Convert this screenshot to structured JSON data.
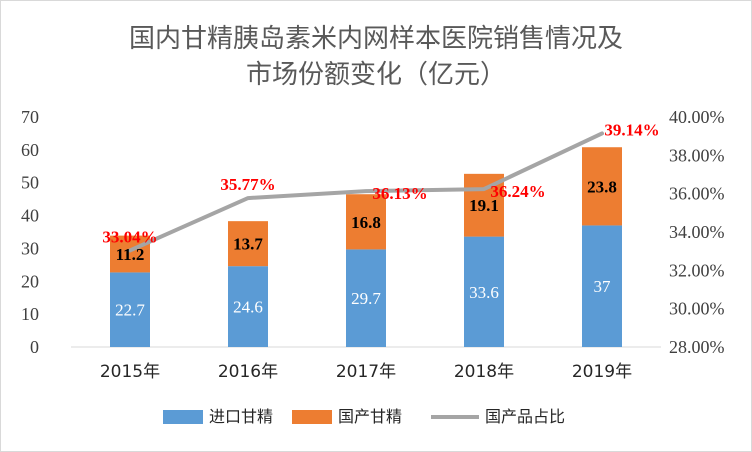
{
  "chart_data": {
    "type": "bar",
    "stacked": true,
    "title": "国内甘精胰岛素米内网样本医院销售情况及市场份额变化（亿元）",
    "title_lines": [
      "国内甘精胰岛素米内网样本医院销售情况及",
      "市场份额变化（亿元）"
    ],
    "categories": [
      "2015年",
      "2016年",
      "2017年",
      "2018年",
      "2019年"
    ],
    "series": [
      {
        "name": "进口甘精",
        "type": "bar",
        "axis": "left",
        "color": "#5b9bd5",
        "values": [
          22.7,
          24.6,
          29.7,
          33.6,
          37
        ],
        "labels": [
          "22.7",
          "24.6",
          "29.7",
          "33.6",
          "37"
        ]
      },
      {
        "name": "国产甘精",
        "type": "bar",
        "axis": "left",
        "color": "#ed7d31",
        "values": [
          11.2,
          13.7,
          16.8,
          19.1,
          23.8
        ],
        "labels": [
          "11.2",
          "13.7",
          "16.8",
          "19.1",
          "23.8"
        ]
      },
      {
        "name": "国产品占比",
        "type": "line",
        "axis": "right",
        "color": "#a5a5a5",
        "values": [
          33.04,
          35.77,
          36.13,
          36.24,
          39.14
        ],
        "labels": [
          "33.04%",
          "35.77%",
          "36.13%",
          "36.24%",
          "39.14%"
        ]
      }
    ],
    "ylim": [
      0,
      70
    ],
    "yticks": [
      "0",
      "10",
      "20",
      "30",
      "40",
      "50",
      "60",
      "70"
    ],
    "y2lim": [
      28,
      40
    ],
    "y2ticks": [
      "28.00%",
      "30.00%",
      "32.00%",
      "34.00%",
      "36.00%",
      "38.00%",
      "40.00%"
    ],
    "legend_position": "bottom",
    "grid": false
  }
}
